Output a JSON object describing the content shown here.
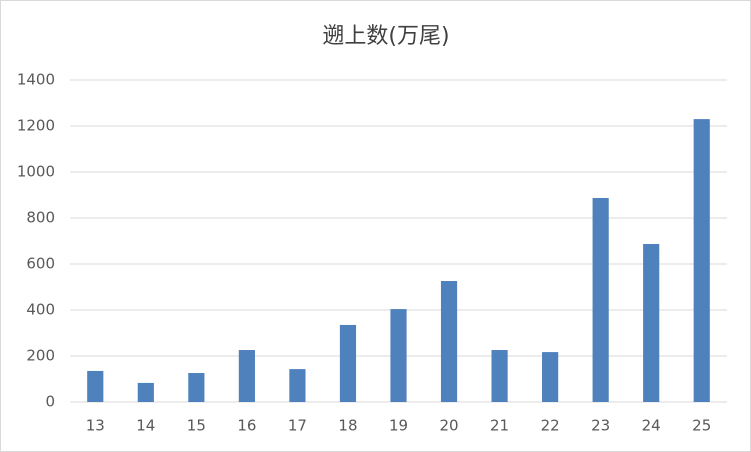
{
  "chart_data": {
    "type": "bar",
    "title": "遡上数(万尾)",
    "categories": [
      "13",
      "14",
      "15",
      "16",
      "17",
      "18",
      "19",
      "20",
      "21",
      "22",
      "23",
      "24",
      "25"
    ],
    "values": [
      135,
      83,
      126,
      226,
      143,
      335,
      404,
      526,
      226,
      217,
      887,
      687,
      1230
    ],
    "color": "#4f81bd",
    "ylim": [
      0,
      1400
    ],
    "yticks": [
      0,
      200,
      400,
      600,
      800,
      1000,
      1200,
      1400
    ],
    "grid": true
  }
}
